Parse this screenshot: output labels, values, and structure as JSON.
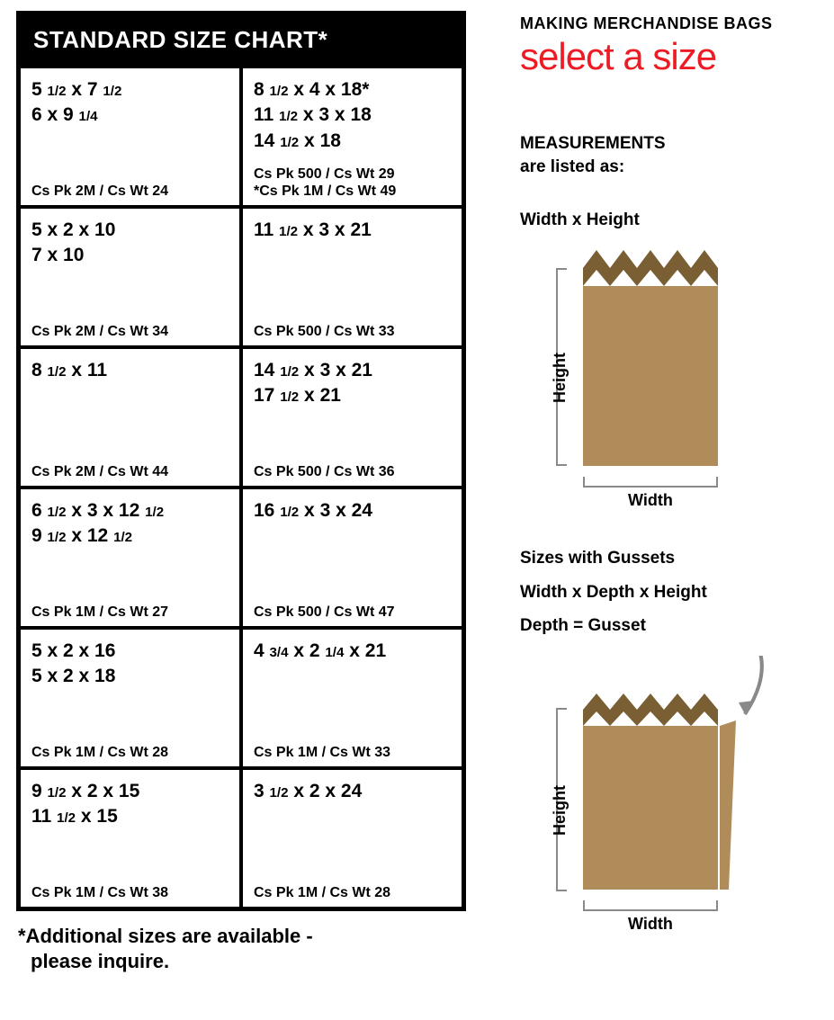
{
  "chart": {
    "title": "STANDARD SIZE CHART*",
    "cells": [
      {
        "sizes": [
          "5 ~1/2~ x 7 ~1/2~",
          "6 x 9 ~1/4~"
        ],
        "meta": [
          "Cs Pk 2M / Cs Wt 24"
        ]
      },
      {
        "sizes": [
          "8 ~1/2~ x 4 x 18*",
          "11 ~1/2~ x 3 x 18",
          "14 ~1/2~ x 18"
        ],
        "meta": [
          "Cs Pk 500 / Cs Wt 29",
          "*Cs Pk 1M / Cs Wt 49"
        ]
      },
      {
        "sizes": [
          "5 x 2 x 10",
          "7 x 10"
        ],
        "meta": [
          "Cs Pk 2M / Cs Wt 34"
        ]
      },
      {
        "sizes": [
          "11 ~1/2~ x 3 x 21"
        ],
        "meta": [
          "Cs Pk 500 / Cs Wt 33"
        ]
      },
      {
        "sizes": [
          "8 ~1/2~ x 11"
        ],
        "meta": [
          "Cs Pk 2M / Cs Wt 44"
        ]
      },
      {
        "sizes": [
          "14 ~1/2~ x 3 x 21",
          "17 ~1/2~ x 21"
        ],
        "meta": [
          "Cs Pk 500 / Cs Wt 36"
        ]
      },
      {
        "sizes": [
          "6 ~1/2~ x 3 x 12 ~1/2~",
          "9 ~1/2~ x 12 ~1/2~"
        ],
        "meta": [
          "Cs Pk 1M / Cs Wt 27"
        ]
      },
      {
        "sizes": [
          "16 ~1/2~ x 3 x 24"
        ],
        "meta": [
          "Cs Pk 500 / Cs Wt 47"
        ]
      },
      {
        "sizes": [
          "5 x 2 x 16",
          "5 x 2 x 18"
        ],
        "meta": [
          "Cs Pk 1M / Cs Wt 28"
        ]
      },
      {
        "sizes": [
          "4 ~3/4~ x 2 ~1/4~ x 21"
        ],
        "meta": [
          "Cs Pk 1M / Cs Wt 33"
        ]
      },
      {
        "sizes": [
          "9 ~1/2~ x 2 x 15",
          "11 ~1/2~ x 15"
        ],
        "meta": [
          "Cs Pk 1M / Cs Wt 38"
        ]
      },
      {
        "sizes": [
          "3 ~1/2~ x 2 x 24"
        ],
        "meta": [
          "Cs Pk 1M / Cs Wt 28"
        ]
      }
    ],
    "footnote_l1": "*Additional sizes are available -",
    "footnote_l2": "please inquire."
  },
  "right": {
    "brand_top": "MAKING MERCHANDISE BAGS",
    "brand_main": "select a size",
    "meas_l1": "MEASUREMENTS",
    "meas_l2": "are listed as:",
    "wh": "Width x Height",
    "height_label": "Height",
    "width_label": "Width",
    "gusset_l1": "Sizes with Gussets",
    "gusset_l2": "Width x Depth x Height",
    "gusset_l3": "Depth = Gusset"
  },
  "colors": {
    "bag_body": "#b08c5a",
    "bag_dark": "#7a5f35",
    "red": "#ed1c24",
    "grey": "#898989"
  }
}
